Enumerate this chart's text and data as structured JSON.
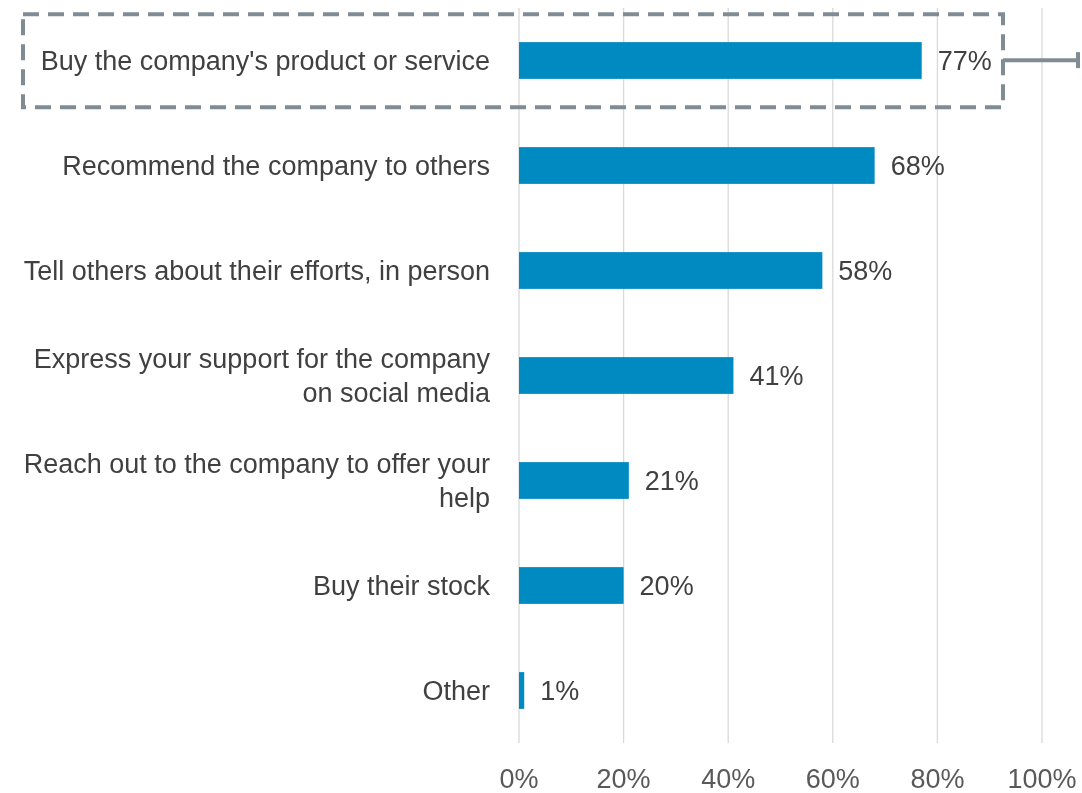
{
  "chart_data": {
    "type": "bar",
    "orientation": "horizontal",
    "categories": [
      "Buy the company's product or service",
      "Recommend the company to others",
      "Tell others about their efforts, in person",
      "Express your support for the company on social media",
      "Reach out to the company to offer your help",
      "Buy their stock",
      "Other"
    ],
    "values": [
      77,
      68,
      58,
      41,
      21,
      20,
      1
    ],
    "color": "#008ac2",
    "value_labels": [
      "77%",
      "68%",
      "58%",
      "41%",
      "21%",
      "20%",
      "1%"
    ],
    "xlim": [
      0,
      100
    ],
    "xticks": [
      {
        "value": 0,
        "label": "0%"
      },
      {
        "value": 20,
        "label": "20%"
      },
      {
        "value": 40,
        "label": "40%"
      },
      {
        "value": 60,
        "label": "60%"
      },
      {
        "value": 80,
        "label": "80%"
      },
      {
        "value": 100,
        "label": "100%"
      }
    ],
    "grid": "x"
  }
}
